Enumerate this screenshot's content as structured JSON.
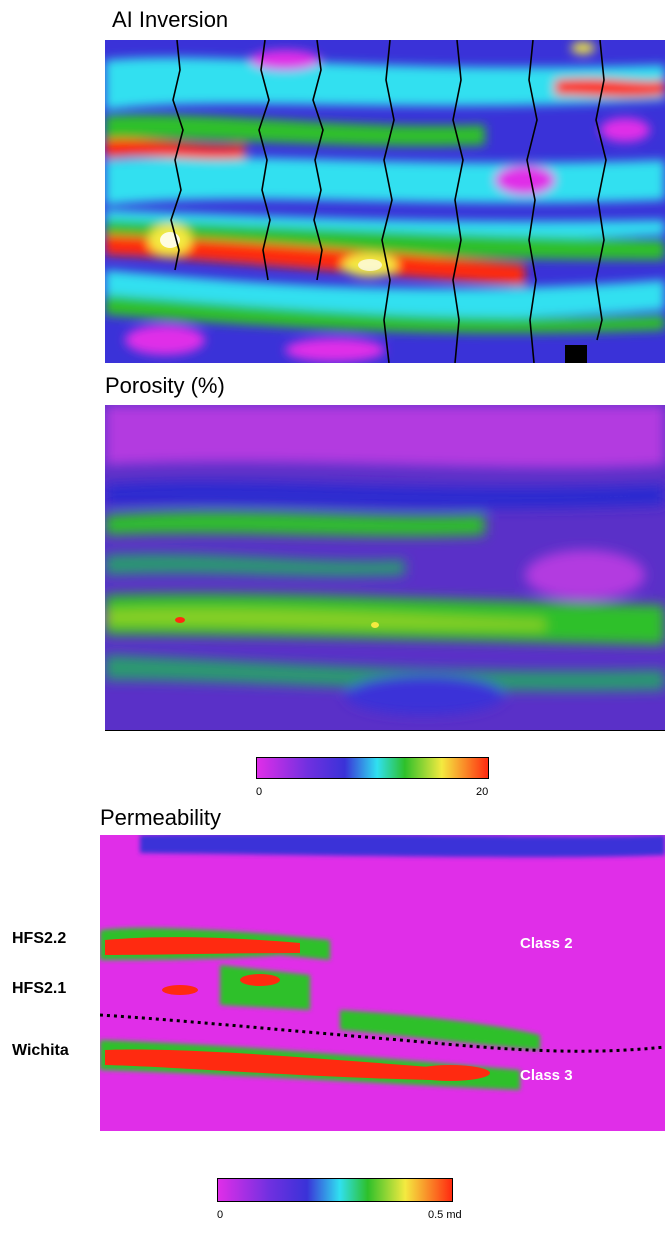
{
  "panels": {
    "ai_inversion": {
      "title": "AI Inversion"
    },
    "porosity": {
      "title": "Porosity (%)"
    },
    "permeability": {
      "title": "Permeability",
      "horizons": [
        "HFS2.2",
        "HFS2.1",
        "Wichita"
      ],
      "classes": [
        "Class 2",
        "Class 3"
      ]
    }
  },
  "colorbars": {
    "porosity": {
      "min_label": "0",
      "max_label": "20"
    },
    "permeability": {
      "min_label": "0",
      "max_label": "0.5 md"
    }
  },
  "colors": {
    "magenta": "#e02ee8",
    "blue": "#3a32d8",
    "cyan": "#30e0f0",
    "green": "#2ec02a",
    "yellow": "#f4ea40",
    "red": "#ff2a10",
    "white": "#ffffff",
    "black": "#000000"
  }
}
